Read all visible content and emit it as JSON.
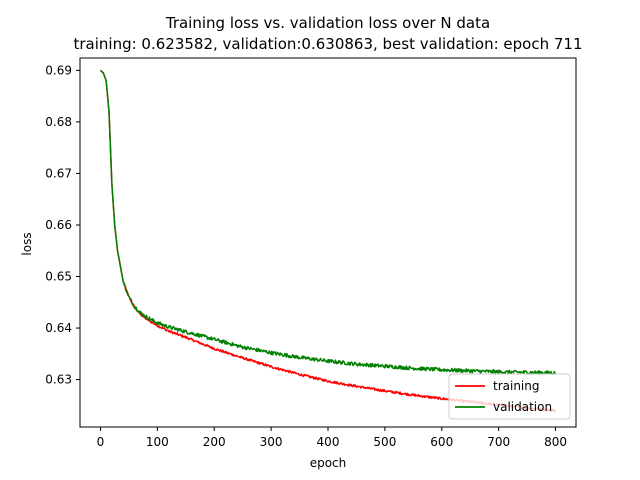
{
  "chart_data": {
    "type": "line",
    "title": "Training loss vs. validation loss over N data",
    "subtitle": "training: 0.623582, validation:0.630863, best validation: epoch 711",
    "xlabel": "epoch",
    "ylabel": "loss",
    "xlim": [
      -36,
      836
    ],
    "ylim": [
      0.6208,
      0.6924
    ],
    "xticks": [
      0,
      100,
      200,
      300,
      400,
      500,
      600,
      700,
      800
    ],
    "yticks": [
      0.63,
      0.64,
      0.65,
      0.66,
      0.67,
      0.68,
      0.69
    ],
    "ytick_labels": [
      "0.63",
      "0.64",
      "0.65",
      "0.66",
      "0.67",
      "0.68",
      "0.69"
    ],
    "grid": false,
    "legend": {
      "position": "lower-right",
      "entries": [
        "training",
        "validation"
      ]
    },
    "series": [
      {
        "name": "training",
        "color": "#ff0000",
        "x": [
          0,
          5,
          10,
          15,
          20,
          25,
          30,
          40,
          50,
          60,
          70,
          80,
          100,
          120,
          150,
          200,
          250,
          300,
          350,
          400,
          450,
          500,
          550,
          600,
          650,
          700,
          750,
          800
        ],
        "y": [
          0.69,
          0.6895,
          0.688,
          0.682,
          0.668,
          0.66,
          0.655,
          0.649,
          0.646,
          0.644,
          0.6427,
          0.6418,
          0.6405,
          0.6394,
          0.6382,
          0.636,
          0.6342,
          0.6325,
          0.631,
          0.6297,
          0.6287,
          0.6278,
          0.627,
          0.6263,
          0.6257,
          0.6251,
          0.6245,
          0.624
        ]
      },
      {
        "name": "validation",
        "color": "#008000",
        "x": [
          0,
          5,
          10,
          15,
          20,
          25,
          30,
          40,
          50,
          60,
          70,
          80,
          100,
          120,
          150,
          200,
          250,
          300,
          350,
          400,
          450,
          500,
          550,
          600,
          650,
          700,
          750,
          800
        ],
        "y": [
          0.69,
          0.6895,
          0.688,
          0.682,
          0.668,
          0.66,
          0.655,
          0.649,
          0.646,
          0.6442,
          0.643,
          0.6422,
          0.641,
          0.6402,
          0.6393,
          0.6378,
          0.6363,
          0.6352,
          0.6343,
          0.6336,
          0.633,
          0.6326,
          0.6322,
          0.6319,
          0.6317,
          0.6315,
          0.6314,
          0.6313
        ]
      }
    ]
  }
}
